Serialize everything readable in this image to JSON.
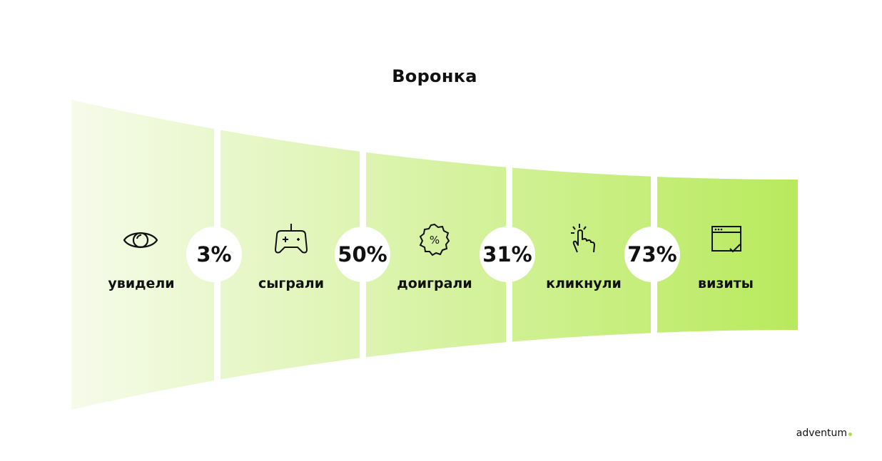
{
  "title": "Воронка",
  "brand": {
    "logo_text": "adventum",
    "dot_color": "#a8e04a"
  },
  "colors": {
    "gradient_start": "#f6fbea",
    "gradient_end": "#b8ea5c",
    "separator": "#ffffff"
  },
  "stages": [
    {
      "label": "увидели",
      "icon": "eye-icon"
    },
    {
      "label": "сыграли",
      "icon": "gamepad-icon"
    },
    {
      "label": "доиграли",
      "icon": "discount-badge-icon"
    },
    {
      "label": "кликнули",
      "icon": "tap-hand-icon"
    },
    {
      "label": "визиты",
      "icon": "browser-window-check-icon"
    }
  ],
  "conversions": [
    "3%",
    "50%",
    "31%",
    "73%"
  ]
}
